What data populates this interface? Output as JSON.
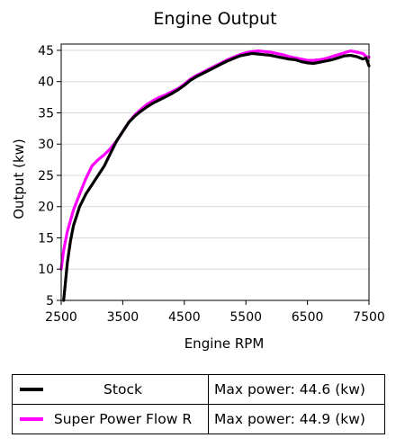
{
  "chart_data": {
    "type": "line",
    "title": "Engine Output",
    "xlabel": "Engine RPM",
    "ylabel": "Output (kw)",
    "xlim": [
      2500,
      7500
    ],
    "ylim": [
      5,
      46
    ],
    "xticks": [
      2500,
      3500,
      4500,
      5500,
      6500,
      7500
    ],
    "yticks": [
      5,
      10,
      15,
      20,
      25,
      30,
      35,
      40,
      45
    ],
    "grid": "horizontal",
    "series": [
      {
        "name": "Stock",
        "color": "#000000",
        "max_label": "Max power: 44.6 (kw)",
        "x": [
          2540,
          2560,
          2600,
          2650,
          2700,
          2800,
          2900,
          3000,
          3100,
          3200,
          3300,
          3400,
          3500,
          3600,
          3700,
          3800,
          3900,
          4000,
          4100,
          4200,
          4300,
          4400,
          4500,
          4600,
          4700,
          4800,
          4900,
          5000,
          5100,
          5200,
          5300,
          5400,
          5500,
          5600,
          5700,
          5800,
          5900,
          6000,
          6100,
          6200,
          6300,
          6400,
          6500,
          6600,
          6700,
          6800,
          6900,
          7000,
          7100,
          7200,
          7300,
          7400,
          7450,
          7500
        ],
        "y": [
          5,
          7,
          11,
          14.5,
          17,
          20,
          22,
          23.5,
          25,
          26.5,
          28.5,
          30.5,
          32,
          33.5,
          34.5,
          35.3,
          36,
          36.6,
          37.1,
          37.6,
          38.1,
          38.7,
          39.4,
          40.2,
          40.8,
          41.3,
          41.8,
          42.3,
          42.8,
          43.3,
          43.7,
          44.1,
          44.3,
          44.5,
          44.4,
          44.3,
          44.2,
          44.0,
          43.8,
          43.6,
          43.5,
          43.2,
          43.0,
          42.9,
          43.1,
          43.3,
          43.5,
          43.8,
          44.1,
          44.2,
          44.0,
          43.6,
          43.8,
          42.5
        ]
      },
      {
        "name": "Super Power Flow R",
        "color": "#ff00ff",
        "max_label": "Max power: 44.9 (kw)",
        "x": [
          2500,
          2540,
          2600,
          2700,
          2800,
          2900,
          3000,
          3100,
          3200,
          3300,
          3400,
          3500,
          3600,
          3700,
          3800,
          3900,
          4000,
          4100,
          4200,
          4300,
          4400,
          4500,
          4600,
          4700,
          4800,
          4900,
          5000,
          5100,
          5200,
          5300,
          5400,
          5500,
          5600,
          5700,
          5800,
          5900,
          6000,
          6100,
          6200,
          6300,
          6400,
          6500,
          6600,
          6700,
          6800,
          6900,
          7000,
          7100,
          7200,
          7300,
          7400,
          7450,
          7500
        ],
        "y": [
          10,
          13,
          16,
          19.5,
          22,
          24.5,
          26.5,
          27.5,
          28.3,
          29.3,
          30.5,
          32,
          33.5,
          34.7,
          35.6,
          36.4,
          37,
          37.5,
          37.9,
          38.4,
          38.9,
          39.6,
          40.4,
          41.0,
          41.5,
          42.0,
          42.5,
          43.0,
          43.5,
          43.9,
          44.3,
          44.6,
          44.8,
          44.9,
          44.8,
          44.7,
          44.5,
          44.3,
          44.0,
          43.8,
          43.6,
          43.4,
          43.4,
          43.5,
          43.7,
          44.0,
          44.3,
          44.6,
          44.9,
          44.7,
          44.5,
          44.0,
          43.9
        ]
      }
    ]
  }
}
